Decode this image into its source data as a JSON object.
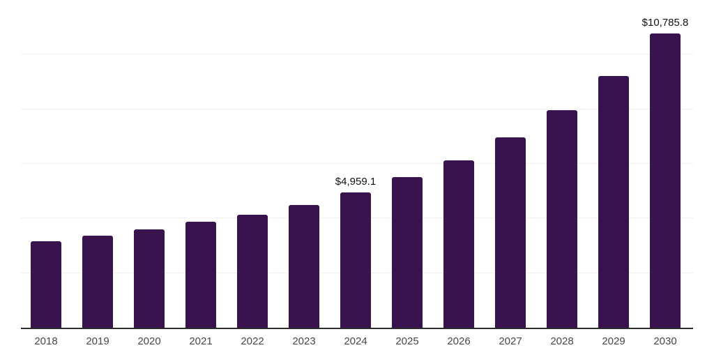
{
  "chart_data": {
    "type": "bar",
    "categories": [
      "2018",
      "2019",
      "2020",
      "2021",
      "2022",
      "2023",
      "2024",
      "2025",
      "2026",
      "2027",
      "2028",
      "2029",
      "2030"
    ],
    "values": [
      3160,
      3360,
      3595,
      3870,
      4125,
      4500,
      4959.1,
      5510,
      6130,
      6960,
      7965,
      9210,
      10785.8
    ],
    "data_labels": [
      "",
      "",
      "",
      "",
      "",
      "",
      "$4,959.1",
      "",
      "",
      "",
      "",
      "",
      "$10,785.8"
    ],
    "xlabel": "",
    "ylabel": "",
    "ylim": [
      0,
      12000
    ],
    "gridline_step": 2000,
    "grid": "horizontal",
    "legend": "none",
    "colors": {
      "bar": "#38134E",
      "gridline": "#f1f1f1",
      "axis_line": "#2b2b2b",
      "tick_label": "#474747",
      "value_label": "#111111",
      "background": "#ffffff"
    }
  }
}
